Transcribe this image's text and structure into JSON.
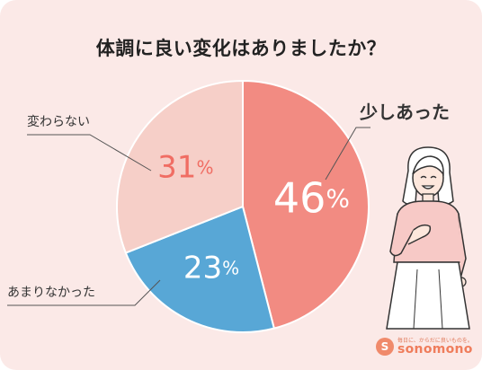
{
  "title": "体調に良い変化はありましたか？",
  "logo": {
    "wordmark": "sonomono",
    "tagline": "毎日に、からだに良いものを。"
  },
  "chart_data": {
    "type": "pie",
    "title": "体調に良い変化はありましたか？",
    "unit": "%",
    "slices": [
      {
        "label": "少しあった",
        "value": 46,
        "color": "#f28b82",
        "value_color": "#ffffff"
      },
      {
        "label": "あまりなかった",
        "value": 23,
        "color": "#58a7d6",
        "value_color": "#ffffff"
      },
      {
        "label": "変わらない",
        "value": 31,
        "color": "#f6cfc8",
        "value_color": "#f06d63"
      }
    ]
  }
}
